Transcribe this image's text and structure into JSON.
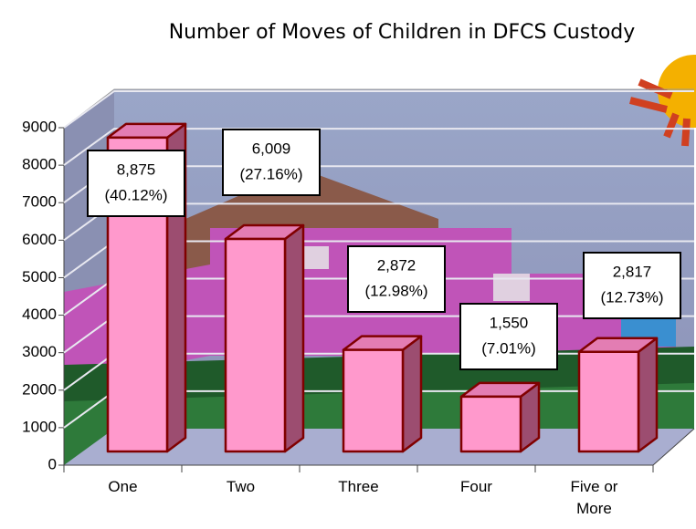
{
  "chart_data": {
    "type": "bar3d",
    "title": "Number of Moves of Children in DFCS Custody",
    "categories": [
      "One",
      "Two",
      "Three",
      "Four",
      "Five or More"
    ],
    "values": [
      8875,
      6009,
      2872,
      1550,
      2817
    ],
    "value_labels": [
      "8,875",
      "6,009",
      "2,872",
      "1,550",
      "2,817"
    ],
    "percent_labels": [
      "(40.12%)",
      "(27.16%)",
      "(12.98%)",
      "(7.01%)",
      "(12.73%)"
    ],
    "color": "#ff99cc",
    "ylim": [
      0,
      9000
    ],
    "yticks": [
      0,
      1000,
      2000,
      3000,
      4000,
      5000,
      6000,
      7000,
      8000,
      9000
    ],
    "grid": true
  }
}
